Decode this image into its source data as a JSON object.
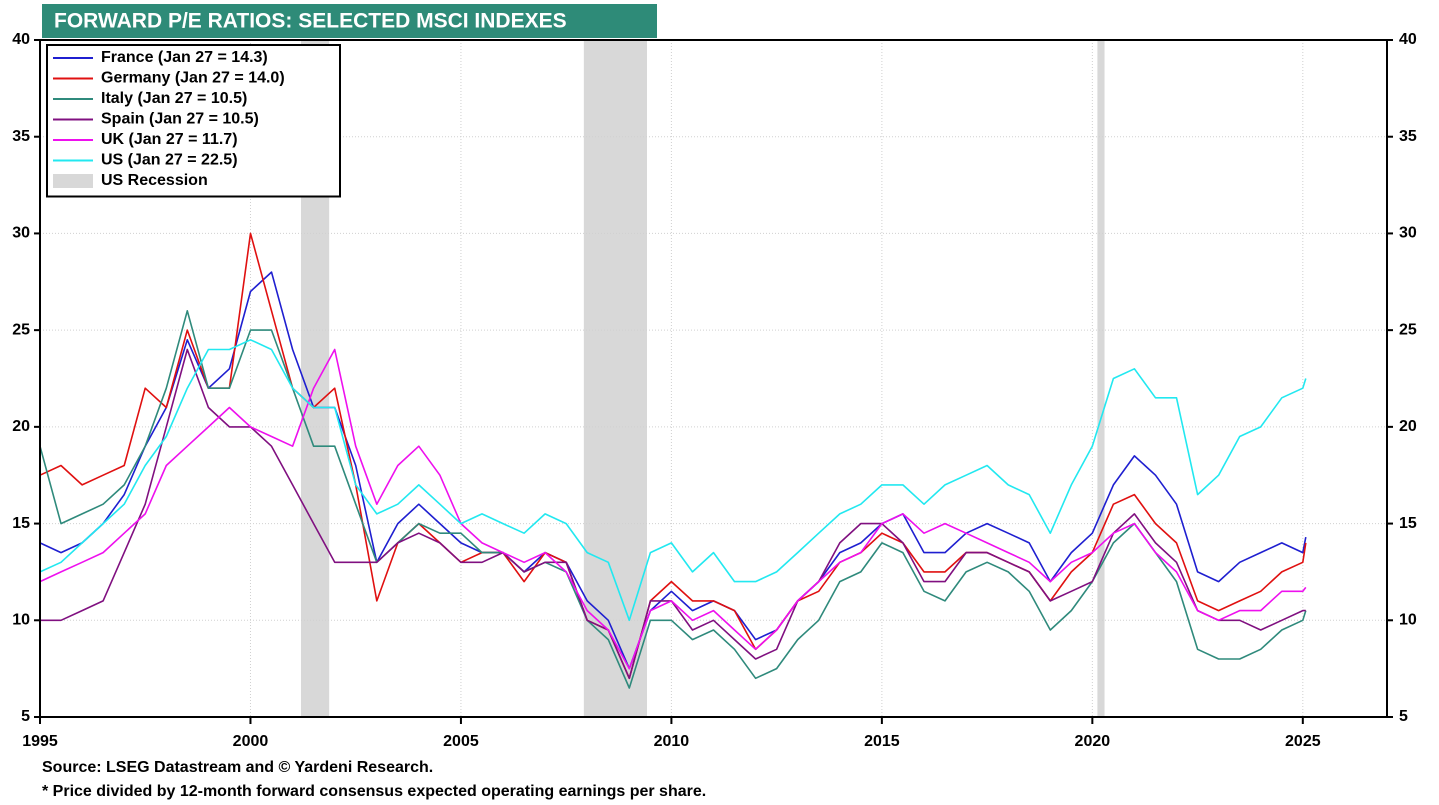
{
  "chart_data": {
    "type": "line",
    "title": "FORWARD P/E RATIOS: SELECTED MSCI INDEXES",
    "title_color": "#2e8b78",
    "notes": [
      "Source: LSEG Datastream and © Yardeni Research.",
      "* Price divided by 12-month forward consensus expected operating earnings per share."
    ],
    "x": [
      1995,
      1995.5,
      1996,
      1996.5,
      1997,
      1997.5,
      1998,
      1998.5,
      1999,
      1999.5,
      2000,
      2000.5,
      2001,
      2001.5,
      2002,
      2002.5,
      2003,
      2003.5,
      2004,
      2004.5,
      2005,
      2005.5,
      2006,
      2006.5,
      2007,
      2007.5,
      2008,
      2008.5,
      2009,
      2009.5,
      2010,
      2010.5,
      2011,
      2011.5,
      2012,
      2012.5,
      2013,
      2013.5,
      2014,
      2014.5,
      2015,
      2015.5,
      2016,
      2016.5,
      2017,
      2017.5,
      2018,
      2018.5,
      2019,
      2019.5,
      2020,
      2020.5,
      2021,
      2021.5,
      2022,
      2022.5,
      2023,
      2023.5,
      2024,
      2024.5,
      2025,
      2025.07
    ],
    "series": [
      {
        "name": "France (Jan 27 = 14.3)",
        "color": "#1f1fd0",
        "values": [
          14,
          13.5,
          14,
          15,
          16.5,
          19,
          21,
          24.5,
          22,
          23,
          27,
          28,
          24,
          21,
          21,
          18,
          13,
          15,
          16,
          15,
          14,
          13.5,
          13.5,
          12.5,
          13.5,
          13,
          11,
          10,
          7.5,
          10.5,
          11.5,
          10.5,
          11,
          10.5,
          9,
          9.5,
          11,
          12,
          13.5,
          14,
          15,
          15.5,
          13.5,
          13.5,
          14.5,
          15,
          14.5,
          14,
          12,
          13.5,
          14.5,
          17,
          18.5,
          17.5,
          16,
          12.5,
          12,
          13,
          13.5,
          14,
          13.5,
          14.3
        ]
      },
      {
        "name": "Germany (Jan 27 = 14.0)",
        "color": "#e01010",
        "values": [
          17.5,
          18,
          17,
          17.5,
          18,
          22,
          21,
          25,
          22,
          22,
          30,
          26,
          22,
          21,
          22,
          17,
          11,
          14,
          15,
          14,
          13,
          13.5,
          13.5,
          12,
          13.5,
          13,
          10,
          9.5,
          7,
          11,
          12,
          11,
          11,
          10.5,
          8.5,
          9.5,
          11,
          11.5,
          13,
          13.5,
          14.5,
          14,
          12.5,
          12.5,
          13.5,
          13.5,
          13,
          12.5,
          11,
          12.5,
          13.5,
          16,
          16.5,
          15,
          14,
          11,
          10.5,
          11,
          11.5,
          12.5,
          13,
          14.0
        ]
      },
      {
        "name": "Italy (Jan 27 = 10.5)",
        "color": "#2f8a7c",
        "values": [
          19,
          15,
          15.5,
          16,
          17,
          19,
          22,
          26,
          22,
          22,
          25,
          25,
          22,
          19,
          19,
          16,
          13,
          14,
          15,
          14.5,
          14.5,
          13.5,
          13.5,
          12.5,
          13,
          12.5,
          10,
          9,
          6.5,
          10,
          10,
          9,
          9.5,
          8.5,
          7,
          7.5,
          9,
          10,
          12,
          12.5,
          14,
          13.5,
          11.5,
          11,
          12.5,
          13,
          12.5,
          11.5,
          9.5,
          10.5,
          12,
          14,
          15,
          13.5,
          12,
          8.5,
          8,
          8,
          8.5,
          9.5,
          10,
          10.5
        ]
      },
      {
        "name": "Spain (Jan 27 = 10.5)",
        "color": "#801080",
        "values": [
          10,
          10,
          10.5,
          11,
          13.5,
          16,
          20,
          24,
          21,
          20,
          20,
          19,
          17,
          15,
          13,
          13,
          13,
          14,
          14.5,
          14,
          13,
          13,
          13.5,
          12.5,
          13,
          13,
          10,
          9.5,
          7,
          11,
          11,
          9.5,
          10,
          9,
          8,
          8.5,
          11,
          12,
          14,
          15,
          15,
          14,
          12,
          12,
          13.5,
          13.5,
          13,
          12.5,
          11,
          11.5,
          12,
          14.5,
          15.5,
          14,
          13,
          10.5,
          10,
          10,
          9.5,
          10,
          10.5,
          10.5
        ]
      },
      {
        "name": "UK (Jan 27 = 11.7)",
        "color": "#ee10ee",
        "values": [
          12,
          12.5,
          13,
          13.5,
          14.5,
          15.5,
          18,
          19,
          20,
          21,
          20,
          19.5,
          19,
          22,
          24,
          19,
          16,
          18,
          19,
          17.5,
          15,
          14,
          13.5,
          13,
          13.5,
          12.5,
          10.5,
          9.5,
          7.5,
          10.5,
          11,
          10,
          10.5,
          9.5,
          8.5,
          9.5,
          11,
          12,
          13,
          13.5,
          15,
          15.5,
          14.5,
          15,
          14.5,
          14,
          13.5,
          13,
          12,
          13,
          13.5,
          14.5,
          15,
          13.5,
          12.5,
          10.5,
          10,
          10.5,
          10.5,
          11.5,
          11.5,
          11.7
        ]
      },
      {
        "name": "US (Jan 27 = 22.5)",
        "color": "#22e8f0",
        "values": [
          12.5,
          13,
          14,
          15,
          16,
          18,
          19.5,
          22,
          24,
          24,
          24.5,
          24,
          22,
          21,
          21,
          17,
          15.5,
          16,
          17,
          16,
          15,
          15.5,
          15,
          14.5,
          15.5,
          15,
          13.5,
          13,
          10,
          13.5,
          14,
          12.5,
          13.5,
          12,
          12,
          12.5,
          13.5,
          14.5,
          15.5,
          16,
          17,
          17,
          16,
          17,
          17.5,
          18,
          17,
          16.5,
          14.5,
          17,
          19,
          22.5,
          23,
          21.5,
          21.5,
          16.5,
          17.5,
          19.5,
          20,
          21.5,
          22,
          22.5
        ]
      }
    ],
    "recessions": {
      "name": "US Recession",
      "color": "#d8d8d8",
      "spans": [
        [
          2001.2,
          2001.87
        ],
        [
          2007.92,
          2009.42
        ],
        [
          2020.12,
          2020.29
        ]
      ]
    },
    "xlim": [
      1995,
      2027
    ],
    "xticks": [
      1995,
      2000,
      2005,
      2010,
      2015,
      2020,
      2025
    ],
    "ylim": [
      5,
      40
    ],
    "yticks": [
      5,
      10,
      15,
      20,
      25,
      30,
      35,
      40
    ],
    "grid": true,
    "legend": "upper left"
  }
}
